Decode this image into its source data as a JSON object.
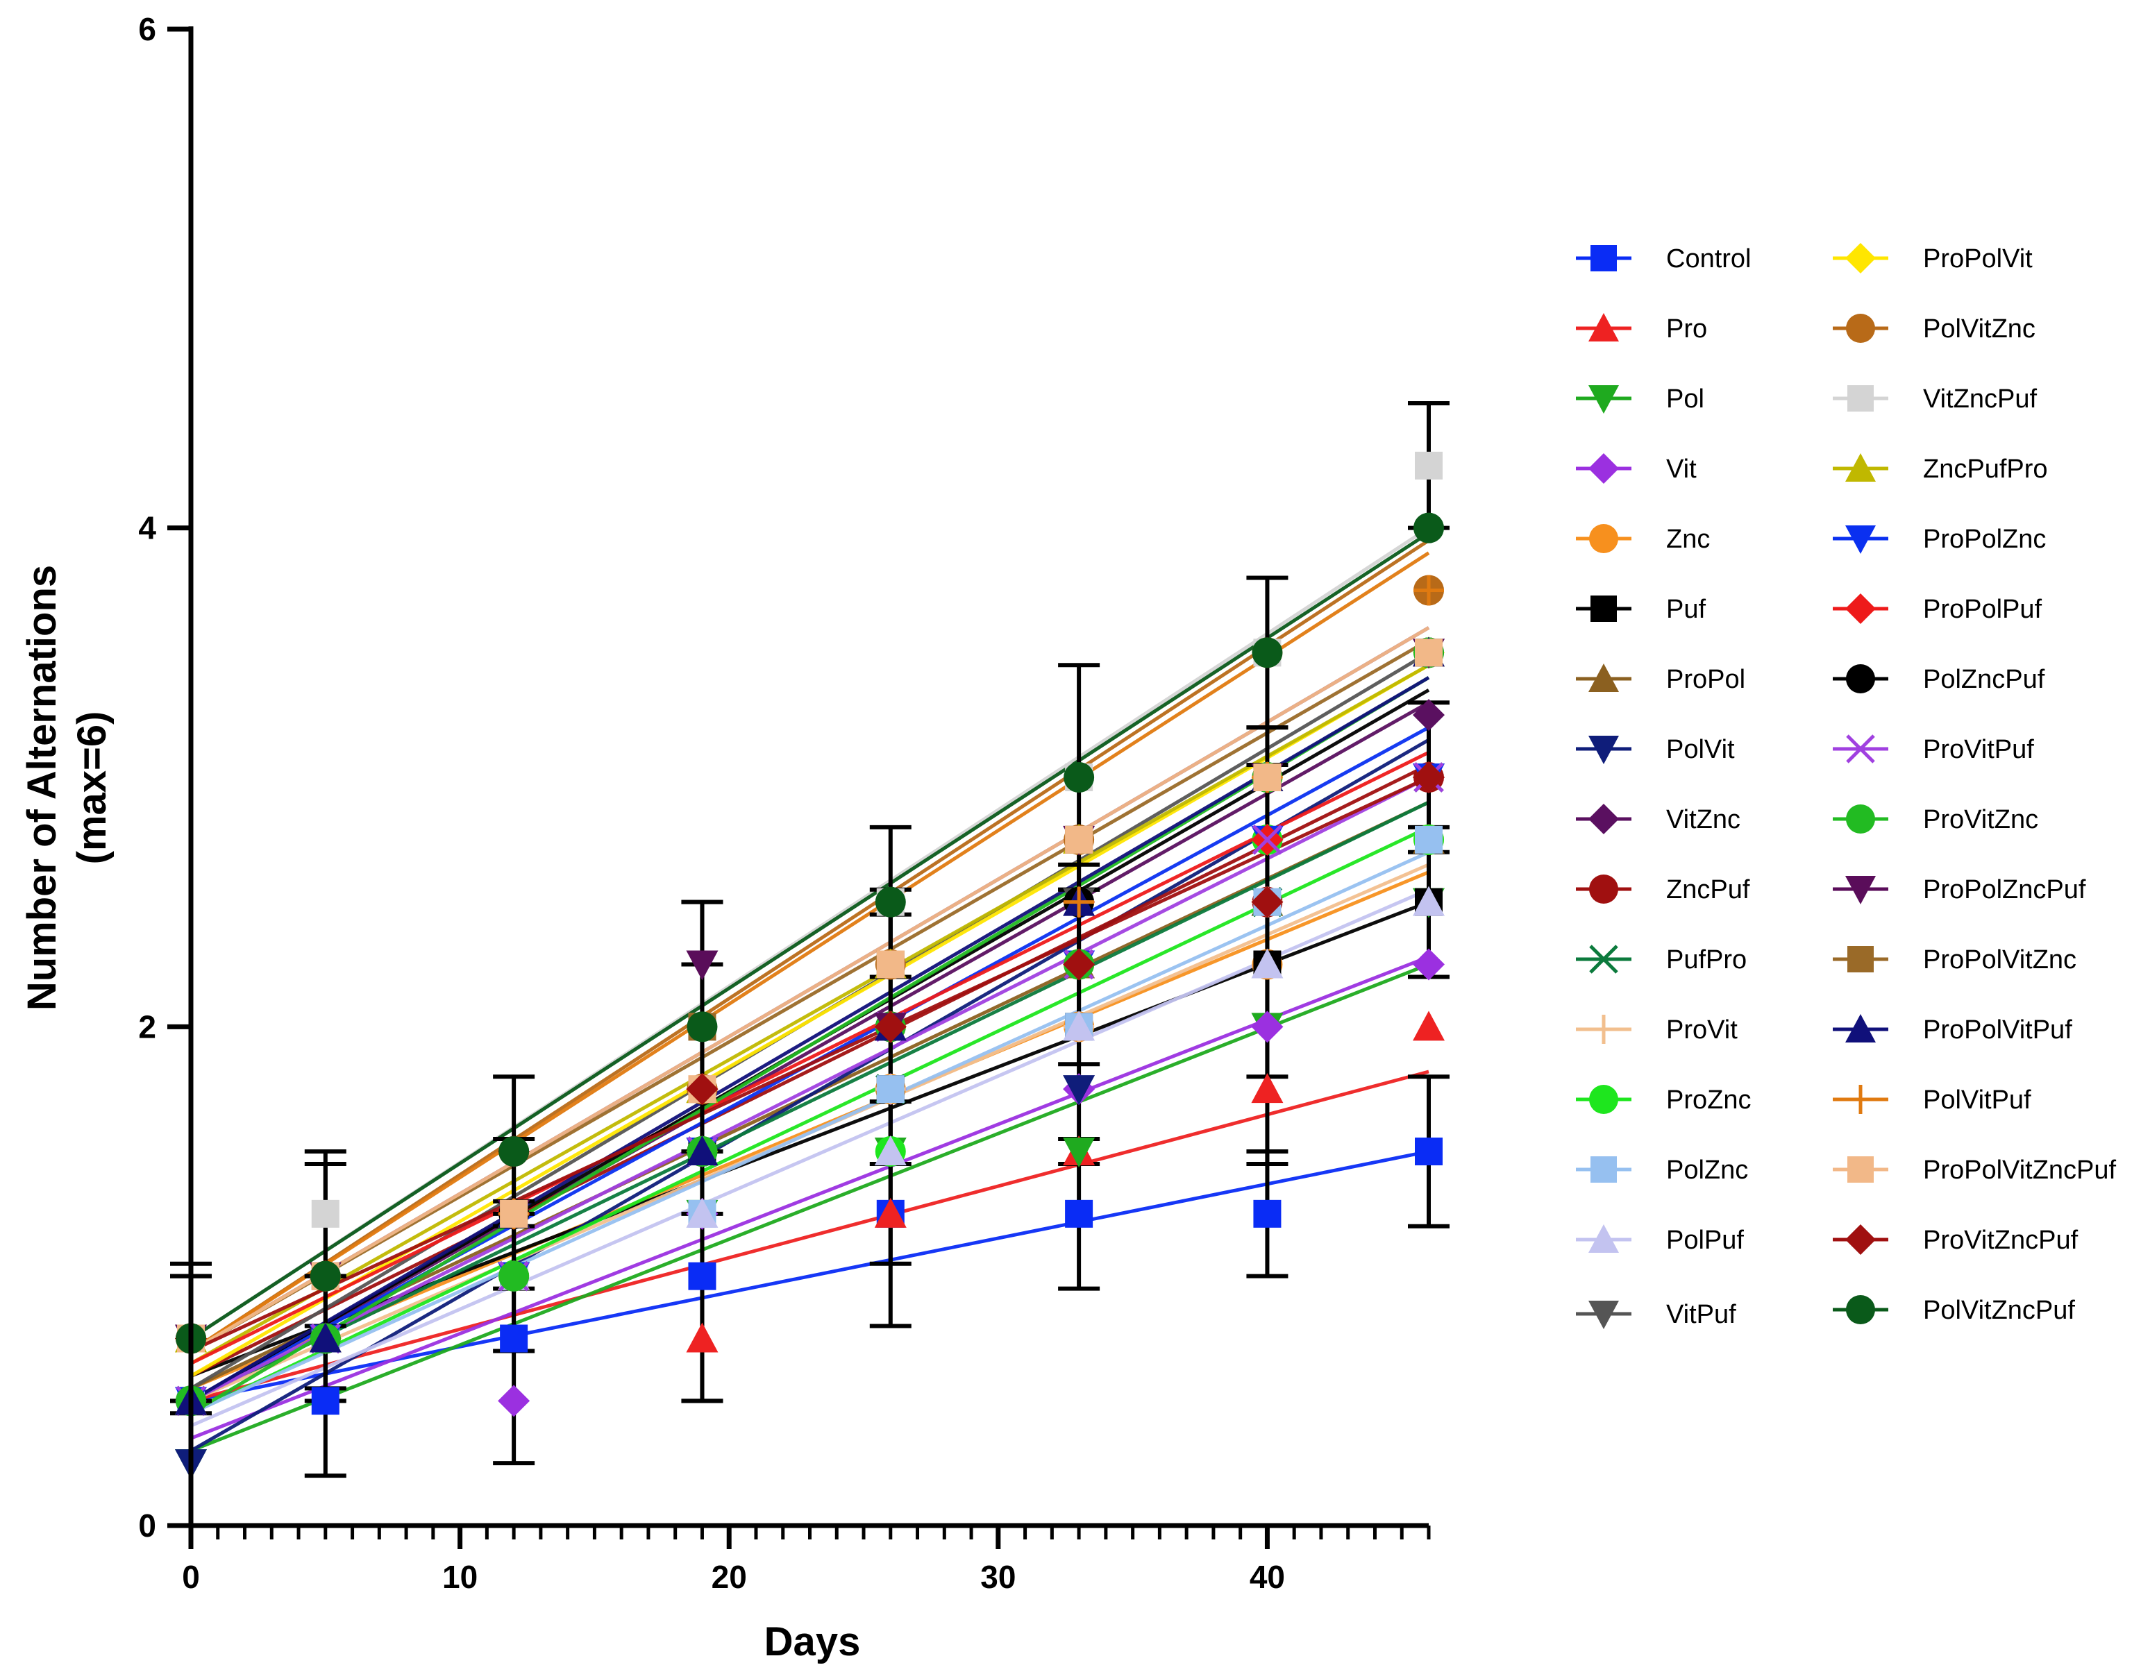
{
  "chart_data": {
    "type": "line",
    "title": "",
    "xlabel": "Days",
    "ylabel": "Number of Alternations",
    "ylabel_sub": "(max=6)",
    "xlim": [
      0,
      46
    ],
    "ylim": [
      0,
      6
    ],
    "x_ticks": [
      0,
      10,
      20,
      30,
      40
    ],
    "x_tick_labels": [
      "0",
      "10",
      "20",
      "30",
      "40"
    ],
    "y_ticks": [
      0,
      2,
      4,
      6
    ],
    "y_tick_labels": [
      "0",
      "2",
      "4",
      "6"
    ],
    "x_minor_step": 1,
    "x": [
      0,
      5,
      12,
      19,
      26,
      33,
      40,
      46
    ],
    "legend_position": "right",
    "series": [
      {
        "name": "Control",
        "color": "#0a2cf5",
        "marker": "square",
        "values": [
          0.5,
          0.5,
          0.75,
          1.0,
          1.25,
          1.25,
          1.25,
          1.5
        ],
        "fit": [
          0.5,
          1.5
        ],
        "err": [
          0.5,
          0.3,
          0.5,
          0.5,
          0.45,
          0.3,
          0.25,
          0.3
        ]
      },
      {
        "name": "Pro",
        "color": "#ee2222",
        "marker": "triangle-up",
        "values": [
          0.5,
          0.75,
          1.0,
          0.75,
          1.25,
          1.5,
          1.75,
          2.0
        ],
        "fit": [
          0.5,
          1.82
        ]
      },
      {
        "name": "Pol",
        "color": "#1faa1f",
        "marker": "triangle-down",
        "values": [
          0.25,
          0.75,
          1.0,
          1.25,
          1.5,
          1.5,
          2.0,
          2.5
        ],
        "fit": [
          0.3,
          2.25
        ]
      },
      {
        "name": "Vit",
        "color": "#9b30e0",
        "marker": "diamond",
        "values": [
          0.5,
          0.75,
          0.5,
          1.25,
          1.75,
          1.75,
          2.0,
          2.25
        ],
        "fit": [
          0.35,
          2.28
        ]
      },
      {
        "name": "Znc",
        "color": "#f7901e",
        "marker": "circle",
        "values": [
          0.5,
          0.75,
          1.0,
          1.5,
          1.75,
          2.0,
          2.25,
          2.75
        ],
        "fit": [
          0.55,
          2.62
        ]
      },
      {
        "name": "Puf",
        "color": "#000000",
        "marker": "square",
        "values": [
          0.75,
          0.75,
          1.0,
          1.5,
          1.75,
          2.0,
          2.25,
          2.5
        ],
        "fit": [
          0.6,
          2.5
        ],
        "err": [
          0.25,
          0.25,
          0.3,
          1.0,
          0.7,
          0.55,
          0.8,
          0.3
        ]
      },
      {
        "name": "ProPol",
        "color": "#8b6020",
        "marker": "triangle-up",
        "values": [
          0.75,
          0.75,
          1.25,
          1.75,
          2.0,
          2.25,
          2.5,
          2.75
        ],
        "fit": [
          0.55,
          2.9
        ]
      },
      {
        "name": "PolVit",
        "color": "#0f1d7a",
        "marker": "triangle-down",
        "values": [
          0.25,
          0.75,
          1.0,
          1.5,
          2.0,
          1.75,
          2.75,
          3.0
        ],
        "fit": [
          0.3,
          3.15
        ]
      },
      {
        "name": "VitZnc",
        "color": "#5a1060",
        "marker": "diamond",
        "values": [
          0.5,
          1.0,
          1.25,
          1.75,
          2.0,
          2.5,
          2.75,
          3.25
        ],
        "fit": [
          0.5,
          3.3
        ]
      },
      {
        "name": "ZncPuf",
        "color": "#a01010",
        "marker": "circle",
        "values": [
          0.75,
          1.0,
          1.5,
          1.75,
          2.0,
          2.25,
          2.5,
          3.0
        ],
        "fit": [
          0.6,
          3.05
        ],
        "err": [
          0.3,
          0.45,
          0.3,
          0.5,
          0.55,
          0.4,
          0.7,
          0.3
        ]
      },
      {
        "name": "PufPro",
        "color": "#0b7a3c",
        "marker": "x",
        "values": [
          0.5,
          0.75,
          1.0,
          1.5,
          1.75,
          2.25,
          2.5,
          3.0
        ],
        "fit": [
          0.5,
          2.9
        ]
      },
      {
        "name": "ProVit",
        "color": "#f2bf8e",
        "marker": "plus",
        "values": [
          0.5,
          0.75,
          1.0,
          1.5,
          1.75,
          2.0,
          2.5,
          2.75
        ],
        "fit": [
          0.5,
          2.65
        ]
      },
      {
        "name": "ProZnc",
        "color": "#1ee61e",
        "marker": "circle",
        "values": [
          0.5,
          0.75,
          1.0,
          1.5,
          1.5,
          2.25,
          2.75,
          2.75
        ],
        "fit": [
          0.45,
          2.8
        ]
      },
      {
        "name": "PolZnc",
        "color": "#96c0f0",
        "marker": "square",
        "values": [
          0.5,
          0.75,
          1.0,
          1.25,
          1.75,
          2.0,
          2.5,
          2.75
        ],
        "fit": [
          0.45,
          2.7
        ]
      },
      {
        "name": "PolPuf",
        "color": "#c3c3f0",
        "marker": "triangle-up",
        "values": [
          0.5,
          0.75,
          1.0,
          1.25,
          1.5,
          2.0,
          2.25,
          2.5
        ],
        "fit": [
          0.4,
          2.55
        ]
      },
      {
        "name": "VitPuf",
        "color": "#555555",
        "marker": "triangle-down",
        "values": [
          0.75,
          0.75,
          1.0,
          1.5,
          2.0,
          2.5,
          3.0,
          3.5
        ],
        "fit": [
          0.55,
          3.5
        ]
      },
      {
        "name": "ProPolVit",
        "color": "#ffe600",
        "marker": "diamond",
        "values": [
          0.75,
          0.75,
          1.25,
          1.5,
          2.0,
          2.5,
          3.0,
          3.5
        ],
        "fit": [
          0.6,
          3.45
        ]
      },
      {
        "name": "PolVitZnc",
        "color": "#b86a18",
        "marker": "circle",
        "values": [
          0.75,
          1.0,
          1.25,
          1.75,
          2.25,
          2.75,
          3.5,
          3.75
        ],
        "fit": [
          0.7,
          3.95
        ]
      },
      {
        "name": "VitZncPuf",
        "color": "#d4d4d4",
        "marker": "square",
        "values": [
          0.75,
          1.25,
          1.25,
          2.0,
          2.5,
          3.0,
          3.5,
          4.25
        ],
        "fit": [
          0.75,
          4.0
        ],
        "err": [
          0.25,
          0.25,
          0.3,
          0.5,
          0.3,
          0.45,
          0.3,
          0.25
        ]
      },
      {
        "name": "ZncPufPro",
        "color": "#c0b800",
        "marker": "triangle-up",
        "values": [
          0.75,
          0.75,
          1.25,
          1.75,
          2.25,
          2.75,
          3.0,
          3.5
        ],
        "fit": [
          0.65,
          3.45
        ]
      },
      {
        "name": "ProPolZnc",
        "color": "#0a30f0",
        "marker": "triangle-down",
        "values": [
          0.5,
          0.75,
          1.0,
          1.5,
          2.0,
          2.25,
          2.75,
          3.0
        ],
        "fit": [
          0.5,
          3.2
        ]
      },
      {
        "name": "ProPolPuf",
        "color": "#ee1a1a",
        "marker": "diamond",
        "values": [
          0.75,
          1.0,
          1.25,
          1.75,
          2.0,
          2.5,
          2.75,
          3.0
        ],
        "fit": [
          0.65,
          3.1
        ]
      },
      {
        "name": "PolZncPuf",
        "color": "#000000",
        "marker": "circle",
        "values": [
          0.5,
          0.75,
          1.25,
          1.5,
          2.0,
          2.5,
          3.0,
          3.5
        ],
        "fit": [
          0.5,
          3.35
        ]
      },
      {
        "name": "ProVitPuf",
        "color": "#a040e0",
        "marker": "x",
        "values": [
          0.5,
          0.75,
          1.0,
          1.5,
          2.0,
          2.25,
          2.75,
          3.0
        ],
        "fit": [
          0.5,
          3.0
        ]
      },
      {
        "name": "ProVitZnc",
        "color": "#22bb22",
        "marker": "circle",
        "values": [
          0.5,
          0.75,
          1.0,
          1.5,
          2.0,
          2.25,
          3.0,
          3.5
        ],
        "fit": [
          0.45,
          3.4
        ]
      },
      {
        "name": "ProPolZncPuf",
        "color": "#5a0d5a",
        "marker": "triangle-down",
        "values": [
          0.75,
          1.0,
          1.25,
          2.25,
          2.0,
          2.75,
          3.0,
          3.5
        ],
        "fit": [
          0.7,
          3.6
        ]
      },
      {
        "name": "ProPolVitZnc",
        "color": "#9a6a28",
        "marker": "square",
        "values": [
          0.75,
          1.0,
          1.25,
          2.0,
          2.25,
          2.75,
          3.0,
          3.5
        ],
        "fit": [
          0.7,
          3.55
        ]
      },
      {
        "name": "ProPolVitPuf",
        "color": "#10107a",
        "marker": "triangle-up",
        "values": [
          0.5,
          0.75,
          1.25,
          1.5,
          2.0,
          2.5,
          3.0,
          3.5
        ],
        "fit": [
          0.5,
          3.4
        ]
      },
      {
        "name": "PolVitPuf",
        "color": "#e07a10",
        "marker": "plus",
        "values": [
          0.75,
          1.0,
          1.25,
          1.75,
          2.0,
          2.5,
          3.0,
          3.75
        ],
        "fit": [
          0.7,
          3.9
        ]
      },
      {
        "name": "ProPolVitZncPuf",
        "color": "#f2b888",
        "marker": "square",
        "values": [
          0.75,
          1.0,
          1.25,
          1.75,
          2.25,
          2.75,
          3.0,
          3.5
        ],
        "fit": [
          0.7,
          3.6
        ]
      },
      {
        "name": "ProVitZncPuf",
        "color": "#a01010",
        "marker": "diamond",
        "values": [
          0.75,
          1.0,
          1.5,
          1.75,
          2.0,
          2.25,
          2.5,
          3.0
        ],
        "fit": [
          0.7,
          3.0
        ]
      },
      {
        "name": "PolVitZncPuf",
        "color": "#0a5a1a",
        "marker": "circle",
        "values": [
          0.75,
          1.0,
          1.5,
          2.0,
          2.5,
          3.0,
          3.5,
          4.0
        ],
        "fit": [
          0.75,
          3.98
        ]
      }
    ]
  }
}
